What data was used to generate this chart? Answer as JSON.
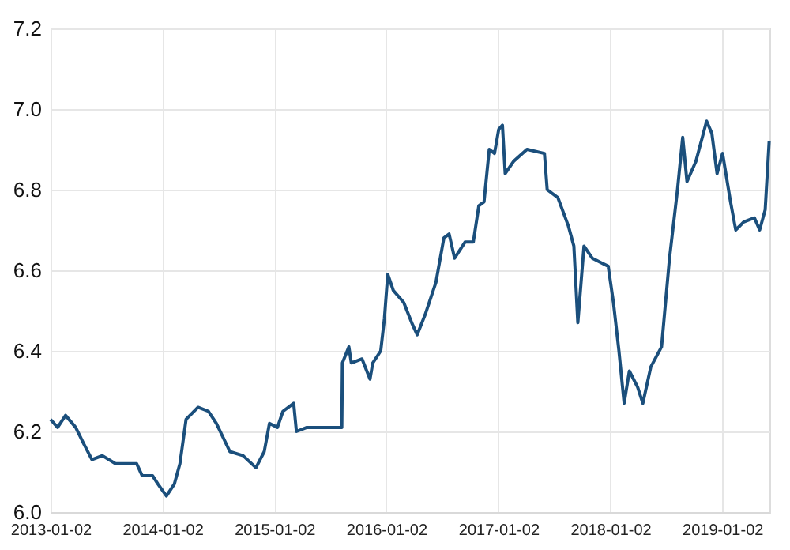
{
  "chart_data": {
    "type": "line",
    "grid": true,
    "line_style": "solid",
    "marker": "none",
    "xlim": [
      "2013-01-02",
      "2019-06-05"
    ],
    "xticks": [
      "2013-01-02",
      "2014-01-02",
      "2015-01-02",
      "2016-01-02",
      "2017-01-02",
      "2018-01-02",
      "2019-01-02"
    ],
    "ylim": [
      6.0,
      7.2
    ],
    "yticks": [
      {
        "value": 6.0,
        "label": "6.0"
      },
      {
        "value": 6.2,
        "label": "6.2"
      },
      {
        "value": 6.4,
        "label": "6.4"
      },
      {
        "value": 6.6,
        "label": "6.6"
      },
      {
        "value": 6.8,
        "label": "6.8"
      },
      {
        "value": 7.0,
        "label": "7.0"
      },
      {
        "value": 7.2,
        "label": "7.2"
      }
    ],
    "x": [
      "2013-01-02",
      "2013-01-25",
      "2013-02-20",
      "2013-03-25",
      "2013-04-20",
      "2013-05-17",
      "2013-06-20",
      "2013-08-02",
      "2013-10-10",
      "2013-10-28",
      "2013-12-01",
      "2013-12-18",
      "2014-01-15",
      "2014-02-10",
      "2014-02-28",
      "2014-03-20",
      "2014-04-28",
      "2014-06-01",
      "2014-06-27",
      "2014-08-10",
      "2014-09-22",
      "2014-11-03",
      "2014-11-30",
      "2014-12-17",
      "2015-01-12",
      "2015-01-30",
      "2015-03-06",
      "2015-03-15",
      "2015-04-18",
      "2015-08-10",
      "2015-08-12",
      "2015-09-02",
      "2015-09-10",
      "2015-10-15",
      "2015-11-10",
      "2015-11-19",
      "2015-12-15",
      "2015-12-27",
      "2016-01-07",
      "2016-01-25",
      "2016-02-28",
      "2016-03-25",
      "2016-04-12",
      "2016-05-08",
      "2016-06-12",
      "2016-07-08",
      "2016-07-25",
      "2016-08-12",
      "2016-09-15",
      "2016-10-12",
      "2016-10-30",
      "2016-11-16",
      "2016-12-03",
      "2016-12-20",
      "2017-01-03",
      "2017-01-15",
      "2017-01-24",
      "2017-02-20",
      "2017-04-05",
      "2017-06-01",
      "2017-06-10",
      "2017-07-15",
      "2017-08-18",
      "2017-09-05",
      "2017-09-18",
      "2017-10-08",
      "2017-11-04",
      "2017-12-26",
      "2018-01-12",
      "2018-01-30",
      "2018-02-16",
      "2018-03-05",
      "2018-04-01",
      "2018-04-18",
      "2018-05-14",
      "2018-06-18",
      "2018-07-14",
      "2018-08-09",
      "2018-08-26",
      "2018-09-09",
      "2018-10-08",
      "2018-11-12",
      "2018-11-29",
      "2018-12-16",
      "2019-01-03",
      "2019-01-29",
      "2019-02-15",
      "2019-03-13",
      "2019-04-17",
      "2019-05-04",
      "2019-05-22",
      "2019-06-04"
    ],
    "series": [
      {
        "color": "#1b4f7c",
        "values": [
          6.23,
          6.21,
          6.24,
          6.21,
          6.17,
          6.13,
          6.14,
          6.12,
          6.12,
          6.09,
          6.09,
          6.07,
          6.04,
          6.07,
          6.12,
          6.23,
          6.26,
          6.25,
          6.22,
          6.15,
          6.14,
          6.11,
          6.15,
          6.22,
          6.21,
          6.25,
          6.27,
          6.2,
          6.21,
          6.21,
          6.37,
          6.41,
          6.37,
          6.38,
          6.33,
          6.37,
          6.4,
          6.48,
          6.59,
          6.55,
          6.52,
          6.47,
          6.44,
          6.49,
          6.57,
          6.68,
          6.69,
          6.63,
          6.67,
          6.67,
          6.76,
          6.77,
          6.9,
          6.89,
          6.95,
          6.96,
          6.84,
          6.87,
          6.9,
          6.89,
          6.8,
          6.78,
          6.71,
          6.66,
          6.47,
          6.66,
          6.63,
          6.61,
          6.52,
          6.4,
          6.27,
          6.35,
          6.31,
          6.27,
          6.36,
          6.41,
          6.63,
          6.8,
          6.93,
          6.82,
          6.87,
          6.97,
          6.94,
          6.84,
          6.89,
          6.77,
          6.7,
          6.72,
          6.73,
          6.7,
          6.75,
          6.92
        ]
      }
    ]
  }
}
